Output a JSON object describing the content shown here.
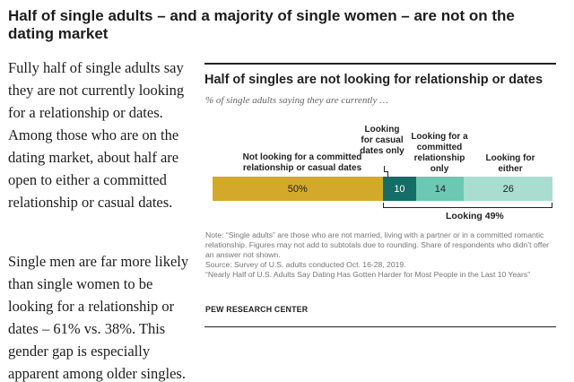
{
  "headline": "Half of single adults – and a majority of single women – are not on the dating market",
  "body": {
    "para1": "Fully half of single adults say they are not currently looking for a relationship or dates. Among those who are on the dating market, about half are open to either a committed relationship or casual dates.",
    "para2": "Single men are far more likely than single women to be looking for a relationship or dates – 61% vs. 38%. This gender gap is especially apparent among older singles."
  },
  "figure": {
    "title": "Half of singles are not looking for relationship or dates",
    "subtitle": "% of single adults saying they are currently …",
    "note": "Note: “Single adults” are those who are not married, living with a partner or in a committed romantic relationship. Figures may not add to subtotals due to rounding. Share of respondents who didn’t offer an answer not shown.",
    "source": "Source: Survey of U.S. adults conducted Oct. 16-28, 2019.",
    "report": "“Nearly Half of U.S. Adults Say Dating Has Gotten Harder for Most People in the Last 10 Years”",
    "credit": "PEW RESEARCH CENTER"
  },
  "chart_data": {
    "type": "bar",
    "orientation": "horizontal-stacked",
    "title": "Half of singles are not looking for relationship or dates",
    "subtitle": "% of single adults saying they are currently …",
    "categories": [
      "Not looking for a committed relationship or casual dates",
      "Looking for casual dates only",
      "Looking for a committed relationship only",
      "Looking for either"
    ],
    "values": [
      50,
      10,
      14,
      26
    ],
    "value_labels": [
      "50%",
      "10",
      "14",
      "26"
    ],
    "colors": [
      "#d2a92a",
      "#166c67",
      "#6cc7b3",
      "#a8ddcf"
    ],
    "label_colors": [
      "#222222",
      "#ffffff",
      "#222222",
      "#222222"
    ],
    "net": {
      "label": "Looking 49%",
      "value": 49,
      "spans": [
        1,
        2,
        3
      ]
    },
    "xlim": [
      0,
      100
    ]
  }
}
